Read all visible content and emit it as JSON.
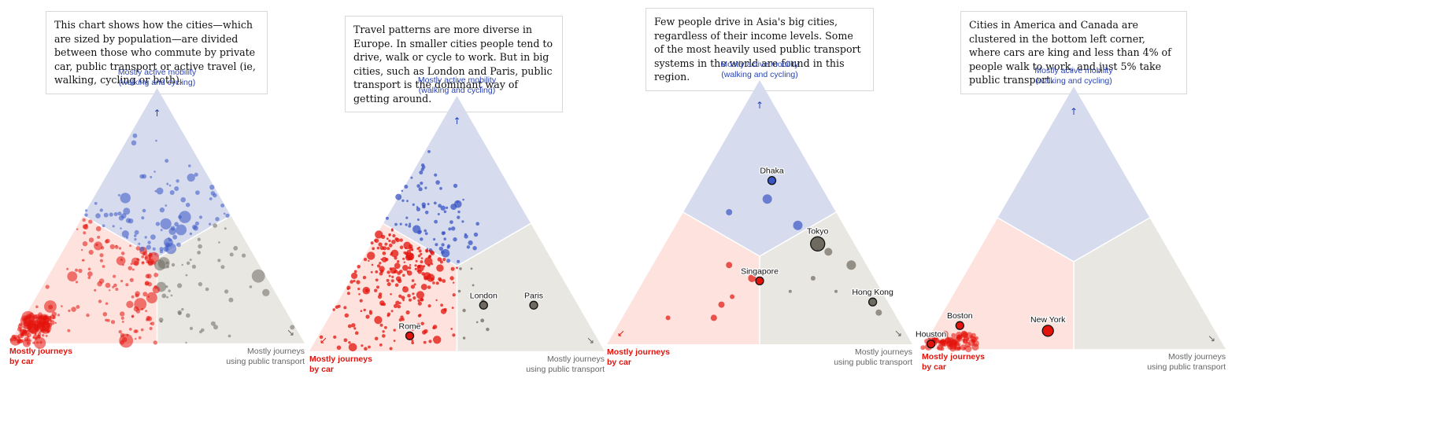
{
  "labels": {
    "active_line1": "Mostly active mobility",
    "active_line2": "(walking and cycling)",
    "car_line1": "Mostly journeys",
    "car_line2": "by car",
    "pt_line1": "Mostly journeys",
    "pt_line2": "using public transport"
  },
  "colors": {
    "car": "#e3120b",
    "active": "#3a55c4",
    "transit": "#6e6a60",
    "bg_car": "#fde2de",
    "bg_active": "#d6dcee",
    "bg_transit": "#e9e7e2"
  },
  "chart_data": [
    {
      "type": "scatter",
      "subtype": "ternary",
      "annotation": "This chart shows how the cities—which are sized by population—are divided between those who commute by private car, public transport or active travel (ie, walking, cycling or both).",
      "axes": [
        "car",
        "active",
        "transit"
      ],
      "highlighted": [],
      "points": []
    },
    {
      "type": "scatter",
      "subtype": "ternary",
      "annotation": "Travel patterns are more diverse in Europe. In smaller cities people tend to drive, walk or cycle to work. But in big cities, such as London and Paris, public transport is the dominant way of getting around.",
      "axes": [
        "car",
        "active",
        "transit"
      ],
      "highlighted": [
        {
          "name": "London",
          "car": 0.32,
          "active": 0.18,
          "transit": 0.5
        },
        {
          "name": "Paris",
          "car": 0.15,
          "active": 0.18,
          "transit": 0.67
        },
        {
          "name": "Rome",
          "car": 0.63,
          "active": 0.06,
          "transit": 0.31
        }
      ],
      "points": []
    },
    {
      "type": "scatter",
      "subtype": "ternary",
      "annotation": "Few people drive in Asia's big cities, regardless of their income levels. Some of the most heavily used public transport systems in the world are found in this region.",
      "axes": [
        "car",
        "active",
        "transit"
      ],
      "highlighted": [
        {
          "name": "Dhaka",
          "car": 0.15,
          "active": 0.62,
          "transit": 0.23
        },
        {
          "name": "Tokyo",
          "car": 0.12,
          "active": 0.38,
          "transit": 0.5
        },
        {
          "name": "Singapore",
          "car": 0.38,
          "active": 0.24,
          "transit": 0.38
        },
        {
          "name": "Hong Kong",
          "car": 0.05,
          "active": 0.16,
          "transit": 0.79
        }
      ],
      "points": []
    },
    {
      "type": "scatter",
      "subtype": "ternary",
      "annotation": "Cities in America and Canada are clustered in the bottom left corner, where cars are king and less than 4% of people walk to work, and just 5% take public transport.",
      "axes": [
        "car",
        "active",
        "transit"
      ],
      "highlighted": [
        {
          "name": "New York",
          "car": 0.55,
          "active": 0.07,
          "transit": 0.38
        },
        {
          "name": "Boston",
          "car": 0.83,
          "active": 0.09,
          "transit": 0.08
        },
        {
          "name": "Houston",
          "car": 0.96,
          "active": 0.02,
          "transit": 0.02
        }
      ],
      "points": []
    }
  ]
}
